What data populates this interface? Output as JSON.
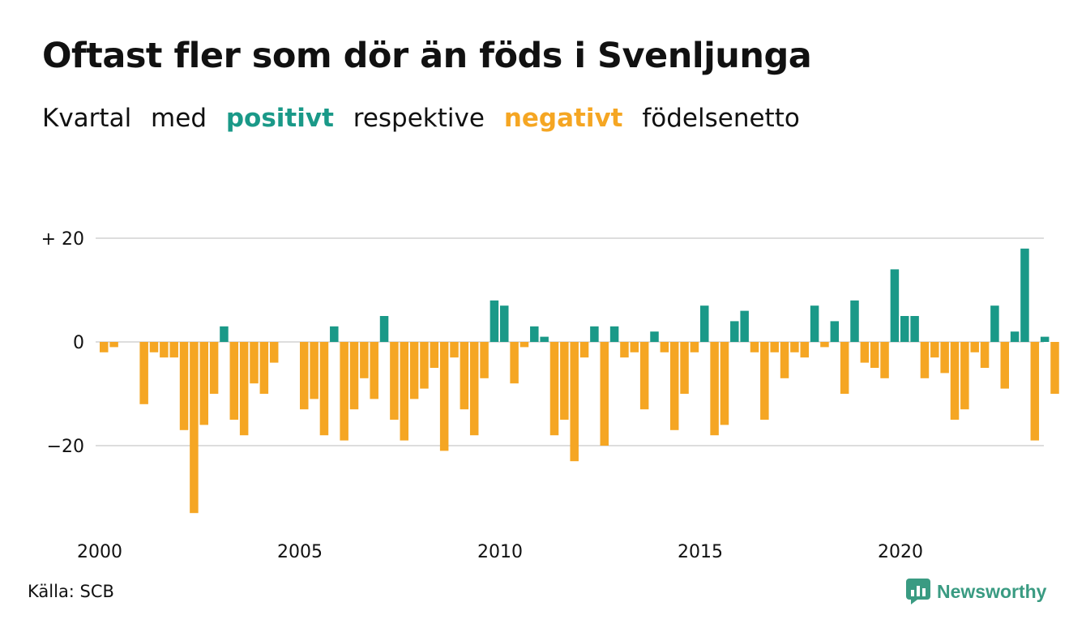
{
  "header": {
    "title": "Oftast fler som dör än föds i Svenljunga",
    "subtitle": {
      "part1": "Kvartal",
      "part2": "med",
      "positive": "positivt",
      "part3": "respektive",
      "negative": "negativt",
      "part4": "födelsenetto"
    }
  },
  "footer": {
    "source": "Källa: SCB",
    "brand": "Newsworthy"
  },
  "colors": {
    "positive": "#1a9988",
    "negative": "#f5a623",
    "grid": "#dddddd"
  },
  "chart_data": {
    "type": "bar",
    "title": "Oftast fler som dör än föds i Svenljunga",
    "subtitle": "Kvartal med positivt respektive negativt födelsenetto",
    "xlabel": "",
    "ylabel": "",
    "ylim": [
      -33,
      20
    ],
    "grid": true,
    "y_ticks": [
      {
        "value": 20,
        "label": "+ 20"
      },
      {
        "value": 0,
        "label": "0"
      },
      {
        "value": -20,
        "label": "−20"
      }
    ],
    "x_ticks": [
      {
        "value": 2000,
        "label": "2000"
      },
      {
        "value": 2005,
        "label": "2005"
      },
      {
        "value": 2010,
        "label": "2010"
      },
      {
        "value": 2015,
        "label": "2015"
      },
      {
        "value": 2020,
        "label": "2020"
      }
    ],
    "start_year": 2000,
    "quarters_per_year": 4,
    "categories": [
      "2000 Q1",
      "2000 Q2",
      "2000 Q3",
      "2000 Q4",
      "2001 Q1",
      "2001 Q2",
      "2001 Q3",
      "2001 Q4",
      "2002 Q1",
      "2002 Q2",
      "2002 Q3",
      "2002 Q4",
      "2003 Q1",
      "2003 Q2",
      "2003 Q3",
      "2003 Q4",
      "2004 Q1",
      "2004 Q2",
      "2004 Q3",
      "2004 Q4",
      "2005 Q1",
      "2005 Q2",
      "2005 Q3",
      "2005 Q4",
      "2006 Q1",
      "2006 Q2",
      "2006 Q3",
      "2006 Q4",
      "2007 Q1",
      "2007 Q2",
      "2007 Q3",
      "2007 Q4",
      "2008 Q1",
      "2008 Q2",
      "2008 Q3",
      "2008 Q4",
      "2009 Q1",
      "2009 Q2",
      "2009 Q3",
      "2009 Q4",
      "2010 Q1",
      "2010 Q2",
      "2010 Q3",
      "2010 Q4",
      "2011 Q1",
      "2011 Q2",
      "2011 Q3",
      "2011 Q4",
      "2012 Q1",
      "2012 Q2",
      "2012 Q3",
      "2012 Q4",
      "2013 Q1",
      "2013 Q2",
      "2013 Q3",
      "2013 Q4",
      "2014 Q1",
      "2014 Q2",
      "2014 Q3",
      "2014 Q4",
      "2015 Q1",
      "2015 Q2",
      "2015 Q3",
      "2015 Q4",
      "2016 Q1",
      "2016 Q2",
      "2016 Q3",
      "2016 Q4",
      "2017 Q1",
      "2017 Q2",
      "2017 Q3",
      "2017 Q4",
      "2018 Q1",
      "2018 Q2",
      "2018 Q3",
      "2018 Q4",
      "2019 Q1",
      "2019 Q2",
      "2019 Q3",
      "2019 Q4",
      "2020 Q1",
      "2020 Q2",
      "2020 Q3",
      "2020 Q4",
      "2021 Q1",
      "2021 Q2",
      "2021 Q3",
      "2021 Q4",
      "2022 Q1",
      "2022 Q2",
      "2022 Q3",
      "2022 Q4",
      "2023 Q1",
      "2023 Q2",
      "2023 Q3",
      "2023 Q4"
    ],
    "values": [
      -2,
      -1,
      0,
      0,
      -12,
      -2,
      -3,
      -3,
      -17,
      -33,
      -16,
      -10,
      3,
      -15,
      -18,
      -8,
      -10,
      -4,
      0,
      0,
      -13,
      -11,
      -18,
      3,
      -19,
      -13,
      -7,
      -11,
      5,
      -15,
      -19,
      -11,
      -9,
      -5,
      -21,
      -3,
      -13,
      -18,
      -7,
      8,
      7,
      -8,
      -1,
      3,
      1,
      -18,
      -15,
      -23,
      -3,
      3,
      -20,
      3,
      -3,
      -2,
      -13,
      2,
      -2,
      -17,
      -10,
      -2,
      7,
      -18,
      -16,
      4,
      6,
      -2,
      -15,
      -2,
      -7,
      -2,
      -3,
      7,
      -1,
      4,
      -10,
      8,
      -4,
      -5,
      -7,
      14,
      5,
      5,
      -7,
      -3,
      -6,
      -15,
      -13,
      -2,
      -5,
      7,
      -9,
      2,
      18,
      -19,
      1,
      -10
    ]
  }
}
